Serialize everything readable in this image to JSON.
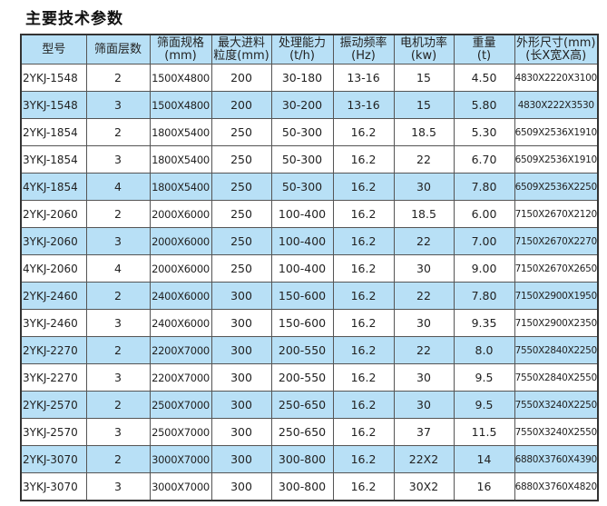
{
  "title": "主要技术参数",
  "headers": [
    "型号",
    "筛面层数",
    "筛面规格\n(mm)",
    "最大进料\n粒度(mm)",
    "处理能力\n(t/h)",
    "振动频率\n(Hz)",
    "电机功率\n(kw)",
    "重量\n(t)",
    "外形尺寸(mm)\n(长X宽X高)"
  ],
  "row_highlight_color": "#b8e0f6",
  "rows": [
    {
      "highlight": false,
      "cells": [
        "2YKJ-1548",
        "2",
        "1500X4800",
        "200",
        "30-180",
        "13-16",
        "15",
        "4.50",
        "4830X2220X3100"
      ]
    },
    {
      "highlight": true,
      "cells": [
        "3YKJ-1548",
        "3",
        "1500X4800",
        "200",
        "30-200",
        "13-16",
        "15",
        "5.80",
        "4830X222X3530"
      ]
    },
    {
      "highlight": false,
      "cells": [
        "2YKJ-1854",
        "2",
        "1800X5400",
        "250",
        "50-300",
        "16.2",
        "18.5",
        "5.30",
        "6509X2536X1910"
      ]
    },
    {
      "highlight": false,
      "cells": [
        "3YKJ-1854",
        "3",
        "1800X5400",
        "250",
        "50-300",
        "16.2",
        "22",
        "6.70",
        "6509X2536X1910"
      ]
    },
    {
      "highlight": true,
      "cells": [
        "4YKJ-1854",
        "4",
        "1800X5400",
        "250",
        "50-300",
        "16.2",
        "30",
        "7.80",
        "6509X2536X2250"
      ]
    },
    {
      "highlight": false,
      "cells": [
        "2YKJ-2060",
        "2",
        "2000X6000",
        "250",
        "100-400",
        "16.2",
        "18.5",
        "6.00",
        "7150X2670X2120"
      ]
    },
    {
      "highlight": true,
      "cells": [
        "3YKJ-2060",
        "3",
        "2000X6000",
        "250",
        "100-400",
        "16.2",
        "22",
        "7.00",
        "7150X2670X2270"
      ]
    },
    {
      "highlight": false,
      "cells": [
        "4YKJ-2060",
        "4",
        "2000X6000",
        "250",
        "100-400",
        "16.2",
        "30",
        "9.00",
        "7150X2670X2650"
      ]
    },
    {
      "highlight": true,
      "cells": [
        "2YKJ-2460",
        "2",
        "2400X6000",
        "300",
        "150-600",
        "16.2",
        "22",
        "7.80",
        "7150X2900X1950"
      ]
    },
    {
      "highlight": false,
      "cells": [
        "3YKJ-2460",
        "3",
        "2400X6000",
        "300",
        "150-600",
        "16.2",
        "30",
        "9.35",
        "7150X2900X2350"
      ]
    },
    {
      "highlight": true,
      "cells": [
        "2YKJ-2270",
        "2",
        "2200X7000",
        "300",
        "200-550",
        "16.2",
        "22",
        "8.0",
        "7550X2840X2250"
      ]
    },
    {
      "highlight": false,
      "cells": [
        "3YKJ-2270",
        "3",
        "2200X7000",
        "300",
        "200-550",
        "16.2",
        "30",
        "9.5",
        "7550X2840X2550"
      ]
    },
    {
      "highlight": true,
      "cells": [
        "2YKJ-2570",
        "2",
        "2500X7000",
        "300",
        "250-650",
        "16.2",
        "30",
        "9.5",
        "7550X3240X2250"
      ]
    },
    {
      "highlight": false,
      "cells": [
        "3YKJ-2570",
        "3",
        "2500X7000",
        "300",
        "250-650",
        "16.2",
        "37",
        "11.5",
        "7550X3240X2550"
      ]
    },
    {
      "highlight": true,
      "cells": [
        "2YKJ-3070",
        "2",
        "3000X7000",
        "300",
        "300-800",
        "16.2",
        "22X2",
        "14",
        "6880X3760X4390"
      ]
    },
    {
      "highlight": false,
      "cells": [
        "3YKJ-3070",
        "3",
        "3000X7000",
        "300",
        "300-800",
        "16.2",
        "30X2",
        "16",
        "6880X3760X4820"
      ]
    }
  ]
}
